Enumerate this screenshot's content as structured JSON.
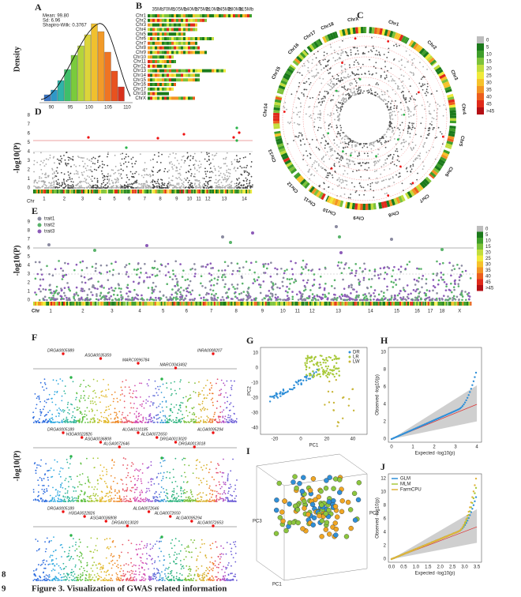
{
  "figure": {
    "caption": "Figure 3. Visualization of GWAS related information",
    "line_numbers": [
      "8",
      "9"
    ]
  },
  "panels": {
    "A": {
      "label": "A",
      "y_label": "Density",
      "stats": [
        "Mean: 99.80",
        "Sd: 6.96",
        "Shapiro-Wilk: 0.3767"
      ],
      "x_ticks": [
        "90",
        "95",
        "100",
        "105",
        "110"
      ]
    },
    "B": {
      "label": "B",
      "top_ticks": [
        "35Mb",
        "70Mb",
        "105Mb",
        "140Mb",
        "175Mb",
        "210Mb",
        "245Mb",
        "280Mb",
        "315Mb"
      ],
      "rows": [
        "Chr1",
        "Chr2",
        "Chr3",
        "Chr4",
        "Chr5",
        "Chr6",
        "Chr7",
        "Chr8",
        "Chr9",
        "Chr10",
        "Chr11",
        "Chr12",
        "Chr13",
        "Chr14",
        "Chr15",
        "Chr16",
        "Chr17",
        "Chr18",
        "ChrX"
      ]
    },
    "C": {
      "label": "C",
      "chromosomes": [
        "Chr1",
        "Chr2",
        "Chr3",
        "Chr4",
        "Chr5",
        "Chr6",
        "Chr7",
        "Chr8",
        "Chr9",
        "Chr10",
        "Chr11",
        "Chr12",
        "Chr13",
        "Chr14",
        "Chr15",
        "Chr16",
        "Chr17",
        "Chr18",
        "ChrX"
      ],
      "legend": [
        "0",
        "5",
        "10",
        "15",
        "20",
        "25",
        "30",
        "35",
        "40",
        "45",
        ">45"
      ]
    },
    "D": {
      "label": "D",
      "y_label": "-log10(P)",
      "x_label": "Chr",
      "y_ticks": [
        "0",
        "1",
        "2",
        "3",
        "4",
        "5",
        "6",
        "7",
        "8"
      ],
      "chromosomes": [
        "1",
        "2",
        "3",
        "4",
        "5",
        "6",
        "7",
        "8",
        "9",
        "10",
        "11",
        "12",
        "13",
        "14"
      ]
    },
    "E": {
      "label": "E",
      "y_label": "-log10(P)",
      "x_label": "Chr",
      "legend": [
        "trait1",
        "trait2",
        "trait3"
      ],
      "y_ticks": [
        "0",
        "1",
        "2",
        "3",
        "4",
        "5",
        "6",
        "7",
        "8",
        "9"
      ],
      "chromosomes": [
        "1",
        "2",
        "3",
        "4",
        "5",
        "6",
        "7",
        "8",
        "9",
        "10",
        "11",
        "12",
        "13",
        "14",
        "15",
        "16",
        "17",
        "18",
        "X"
      ],
      "density_legend": [
        "0",
        "5",
        "10",
        "15",
        "20",
        "25",
        "30",
        "35",
        "40",
        "45",
        ">45"
      ]
    },
    "F": {
      "label": "F",
      "y_label": "-log10(P)",
      "snps": [
        [
          "DRGA0005989",
          "ASGA0035359",
          "MARC0096784",
          "MARC0043492",
          "INRA0008207"
        ],
        [
          "DRGA0005189",
          "H3GA0022826",
          "ASGA0036808",
          "ALGA0072646",
          "ALGA0110185",
          "ALGA0072650",
          "DRGA0013020",
          "DRGA0013018",
          "ALGA0095294"
        ],
        [
          "DRGA0005189",
          "H3GA0022826",
          "ASGA0036808",
          "DRGA0013020",
          "ALGA0072646",
          "ALGA0072650",
          "ALGA0095294",
          "ALGA0072653"
        ]
      ]
    },
    "G": {
      "label": "G",
      "x_label": "PC1",
      "y_label": "PC2",
      "legend": [
        "DR",
        "LR",
        "LW"
      ],
      "x_ticks": [
        "-20",
        "0",
        "20",
        "40"
      ],
      "y_ticks": [
        "-40",
        "-30",
        "-20",
        "-10",
        "0",
        "10"
      ]
    },
    "H": {
      "label": "H",
      "x_label": "Expected -log10(p)",
      "y_label": "Observed -log10(p)",
      "x_ticks": [
        "0",
        "1",
        "2",
        "3",
        "4"
      ],
      "y_ticks": [
        "0",
        "2",
        "4",
        "6",
        "8",
        "10"
      ]
    },
    "I": {
      "label": "I",
      "axis_labels": [
        "PC1",
        "PC2",
        "PC3"
      ]
    },
    "J": {
      "label": "J",
      "x_label": "Expected -log10(p)",
      "y_label": "Observed -log10(p)",
      "legend": [
        "GLM",
        "MLM",
        "FarmCPU"
      ],
      "x_ticks": [
        "0.0",
        "0.5",
        "1.0",
        "1.5",
        "2.0",
        "2.5",
        "3.0",
        "3.5"
      ],
      "y_ticks": [
        "0",
        "2",
        "4",
        "6",
        "8",
        "10",
        "12"
      ]
    }
  }
}
